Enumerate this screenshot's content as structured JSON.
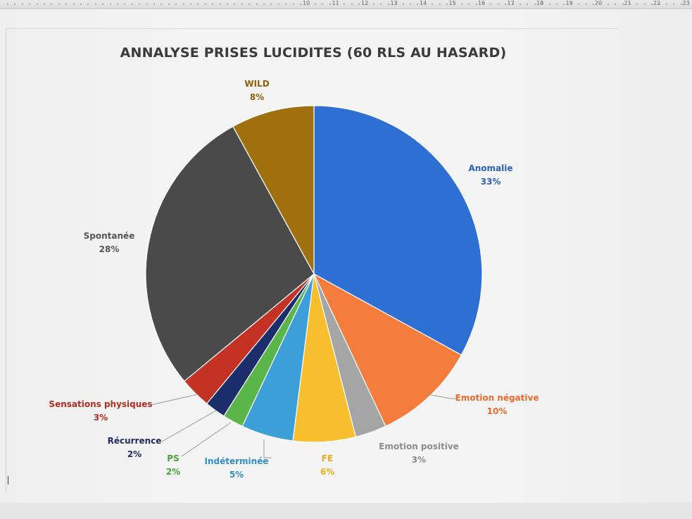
{
  "ruler": {
    "numbers": [
      "10",
      "11",
      "12",
      "13",
      "14",
      "15",
      "16",
      "17",
      "18",
      "19",
      "20",
      "21",
      "22",
      "23"
    ]
  },
  "chart_data": {
    "type": "pie",
    "title": "ANNALYSE PRISES LUCIDITES (60 RLS AU HASARD)",
    "categories": [
      "Anomalie",
      "Emotion négative",
      "Emotion positive",
      "FE",
      "Indéterminée",
      "PS",
      "Récurrence",
      "Sensations physiques",
      "Spontanée",
      "WILD"
    ],
    "values": [
      33,
      10,
      3,
      6,
      5,
      2,
      2,
      3,
      28,
      8
    ],
    "percent_labels": [
      "33%",
      "10%",
      "3%",
      "6%",
      "5%",
      "2%",
      "2%",
      "3%",
      "28%",
      "8%"
    ],
    "colors": [
      "#2e6fd4",
      "#f47c3c",
      "#a5a5a5",
      "#f7bf2e",
      "#3d9fd8",
      "#5ab648",
      "#1c2d6b",
      "#c33222",
      "#4a4a4a",
      "#a1700e"
    ],
    "label_colors": [
      "#2b62b8",
      "#ee6a2c",
      "#8c8c8c",
      "#eeae1a",
      "#2f8ecb",
      "#48a338",
      "#1e2b63",
      "#b22d1f",
      "#555555",
      "#8f5f07"
    ],
    "start_angle": "12 o'clock",
    "direction": "clockwise",
    "legend": "none (data labels with leader lines)"
  }
}
